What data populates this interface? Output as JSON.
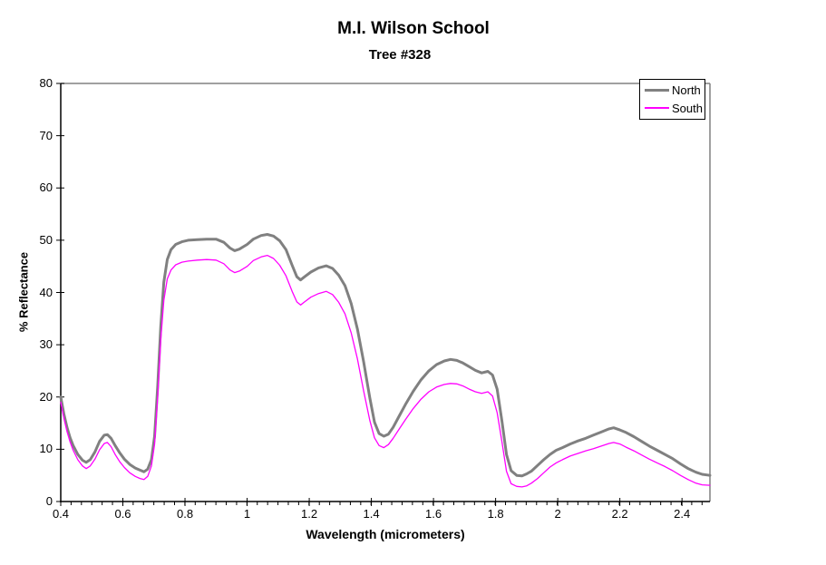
{
  "chart_data": {
    "type": "line",
    "title": "M.I. Wilson School",
    "subtitle": "Tree #328",
    "xlabel": "Wavelength (micrometers)",
    "ylabel": "% Reflectance",
    "xlim": [
      0.4,
      2.49
    ],
    "ylim": [
      0,
      80
    ],
    "grid": false,
    "plot_background": "#ffffff",
    "border_color": "#808080",
    "axis_color": "#000000",
    "legend_position": "top-right",
    "x_major_ticks": [
      0.4,
      0.6,
      0.8,
      1.0,
      1.2,
      1.4,
      1.6,
      1.8,
      2.0,
      2.2,
      2.4
    ],
    "x_major_tick_labels": [
      "0.4",
      "0.6",
      "0.8",
      "1",
      "1.2",
      "1.4",
      "1.6",
      "1.8",
      "2",
      "2.2",
      "2.4"
    ],
    "x_minor_tick_step": 0.0333,
    "y_ticks": [
      0,
      10,
      20,
      30,
      40,
      50,
      60,
      70,
      80
    ],
    "y_tick_labels": [
      "0",
      "10",
      "20",
      "30",
      "40",
      "50",
      "60",
      "70",
      "80"
    ],
    "x": [
      0.4,
      0.41,
      0.42,
      0.43,
      0.44,
      0.455,
      0.47,
      0.482,
      0.495,
      0.51,
      0.525,
      0.54,
      0.55,
      0.562,
      0.575,
      0.59,
      0.605,
      0.622,
      0.64,
      0.655,
      0.668,
      0.68,
      0.692,
      0.702,
      0.712,
      0.722,
      0.732,
      0.743,
      0.755,
      0.77,
      0.79,
      0.81,
      0.84,
      0.87,
      0.9,
      0.925,
      0.945,
      0.96,
      0.975,
      1.0,
      1.02,
      1.045,
      1.065,
      1.085,
      1.105,
      1.125,
      1.145,
      1.16,
      1.172,
      1.185,
      1.205,
      1.23,
      1.255,
      1.275,
      1.295,
      1.315,
      1.335,
      1.355,
      1.375,
      1.395,
      1.41,
      1.425,
      1.44,
      1.455,
      1.47,
      1.49,
      1.51,
      1.535,
      1.56,
      1.585,
      1.61,
      1.635,
      1.655,
      1.675,
      1.695,
      1.715,
      1.735,
      1.755,
      1.775,
      1.79,
      1.805,
      1.82,
      1.835,
      1.85,
      1.868,
      1.885,
      1.9,
      1.915,
      1.935,
      1.955,
      1.975,
      1.995,
      2.015,
      2.04,
      2.065,
      2.09,
      2.115,
      2.14,
      2.165,
      2.18,
      2.2,
      2.22,
      2.245,
      2.27,
      2.295,
      2.32,
      2.345,
      2.37,
      2.395,
      2.42,
      2.445,
      2.465,
      2.49
    ],
    "series": [
      {
        "name": "North",
        "color": "#808080",
        "line_width": 3,
        "values": [
          20.0,
          16.8,
          14.2,
          12.2,
          10.7,
          9.0,
          7.9,
          7.5,
          8.0,
          9.5,
          11.5,
          12.7,
          12.8,
          12.1,
          10.7,
          9.3,
          8.1,
          7.1,
          6.4,
          6.0,
          5.7,
          6.2,
          8.0,
          12.5,
          22.0,
          33.5,
          42.0,
          46.3,
          48.2,
          49.2,
          49.7,
          50.0,
          50.1,
          50.2,
          50.2,
          49.6,
          48.5,
          48.0,
          48.3,
          49.2,
          50.2,
          50.9,
          51.1,
          50.8,
          49.9,
          48.2,
          45.2,
          43.0,
          42.4,
          43.0,
          43.9,
          44.7,
          45.1,
          44.6,
          43.3,
          41.3,
          37.9,
          33.0,
          26.8,
          19.8,
          15.2,
          13.0,
          12.5,
          12.9,
          14.2,
          16.4,
          18.6,
          21.1,
          23.3,
          25.0,
          26.2,
          26.9,
          27.2,
          27.0,
          26.5,
          25.8,
          25.1,
          24.6,
          24.9,
          24.2,
          21.5,
          15.5,
          9.0,
          5.9,
          5.0,
          4.9,
          5.3,
          5.8,
          6.9,
          8.0,
          9.0,
          9.8,
          10.3,
          11.0,
          11.6,
          12.1,
          12.7,
          13.3,
          13.9,
          14.1,
          13.7,
          13.2,
          12.4,
          11.5,
          10.6,
          9.8,
          9.0,
          8.2,
          7.2,
          6.3,
          5.6,
          5.2,
          5.0
        ]
      },
      {
        "name": "South",
        "color": "#FF00FF",
        "line_width": 1.3,
        "values": [
          19.0,
          16.0,
          13.4,
          11.4,
          9.8,
          8.0,
          6.8,
          6.3,
          6.8,
          8.1,
          9.9,
          11.1,
          11.3,
          10.5,
          9.0,
          7.6,
          6.5,
          5.5,
          4.8,
          4.4,
          4.2,
          4.8,
          6.8,
          11.0,
          20.0,
          31.0,
          38.5,
          42.6,
          44.3,
          45.3,
          45.8,
          46.0,
          46.2,
          46.3,
          46.2,
          45.5,
          44.3,
          43.8,
          44.1,
          45.0,
          46.1,
          46.8,
          47.1,
          46.5,
          45.2,
          43.2,
          40.2,
          38.2,
          37.6,
          38.2,
          39.1,
          39.8,
          40.2,
          39.6,
          38.1,
          35.9,
          32.3,
          27.3,
          21.2,
          15.5,
          12.2,
          10.7,
          10.3,
          10.9,
          12.1,
          13.9,
          15.7,
          17.8,
          19.6,
          21.0,
          21.9,
          22.4,
          22.6,
          22.5,
          22.1,
          21.5,
          21.0,
          20.7,
          21.0,
          20.2,
          17.0,
          11.5,
          5.8,
          3.4,
          2.9,
          2.8,
          3.0,
          3.5,
          4.4,
          5.5,
          6.6,
          7.4,
          8.0,
          8.7,
          9.2,
          9.7,
          10.1,
          10.6,
          11.1,
          11.3,
          11.0,
          10.4,
          9.7,
          8.9,
          8.1,
          7.4,
          6.7,
          5.9,
          5.0,
          4.2,
          3.5,
          3.2,
          3.1
        ]
      }
    ]
  }
}
